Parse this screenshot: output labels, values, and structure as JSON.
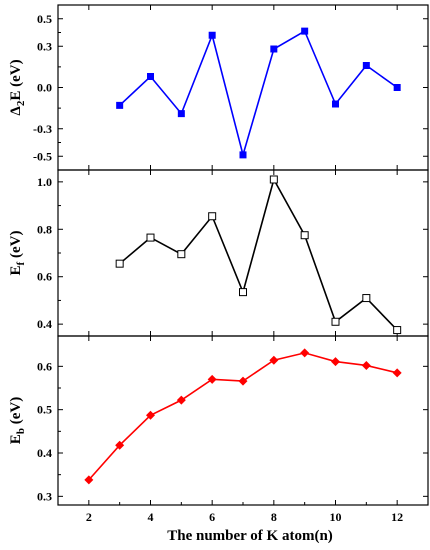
{
  "chart_data": [
    {
      "type": "line",
      "ylabel_main": "Δ",
      "ylabel_sub": "2",
      "ylabel_rest": "E (eV)",
      "ylim": [
        -0.6,
        0.6
      ],
      "yticks": [
        "0.5",
        "0.3",
        "0.0",
        "-0.3",
        "-0.5"
      ],
      "ytick_values": [
        0.5,
        0.3,
        0.0,
        -0.3,
        -0.5
      ],
      "color": "#0000ff",
      "marker": "square-filled",
      "series": [
        {
          "x": [
            3,
            4,
            5,
            6,
            7,
            8,
            9,
            10,
            11,
            12
          ],
          "values": [
            -0.13,
            0.08,
            -0.19,
            0.38,
            -0.49,
            0.28,
            0.41,
            -0.12,
            0.16,
            0.0
          ]
        }
      ]
    },
    {
      "type": "line",
      "ylabel_main": "E",
      "ylabel_sub": "f",
      "ylabel_rest": " (eV)",
      "ylim": [
        0.35,
        1.05
      ],
      "yticks": [
        "1.0",
        "0.8",
        "0.6",
        "0.4"
      ],
      "ytick_values": [
        1.0,
        0.8,
        0.6,
        0.4
      ],
      "color": "#000000",
      "marker": "square-open",
      "series": [
        {
          "x": [
            3,
            4,
            5,
            6,
            7,
            8,
            9,
            10,
            11,
            12
          ],
          "values": [
            0.655,
            0.765,
            0.695,
            0.855,
            0.535,
            1.01,
            0.775,
            0.41,
            0.51,
            0.375
          ]
        }
      ]
    },
    {
      "type": "line",
      "ylabel_main": "E",
      "ylabel_sub": "b",
      "ylabel_rest": " (eV)",
      "ylim": [
        0.28,
        0.67
      ],
      "yticks": [
        "0.6",
        "0.5",
        "0.4",
        "0.3"
      ],
      "ytick_values": [
        0.6,
        0.5,
        0.4,
        0.3
      ],
      "color": "#ff0000",
      "marker": "diamond-filled",
      "series": [
        {
          "x": [
            2,
            3,
            4,
            5,
            6,
            7,
            8,
            9,
            10,
            11,
            12
          ],
          "values": [
            0.338,
            0.418,
            0.487,
            0.522,
            0.57,
            0.566,
            0.614,
            0.631,
            0.611,
            0.602,
            0.585
          ]
        }
      ]
    }
  ],
  "x_axis": {
    "label": "The number of K atom(n)",
    "xlim": [
      1,
      13
    ],
    "ticks": [
      "2",
      "4",
      "6",
      "8",
      "10",
      "12"
    ],
    "tick_values": [
      2,
      4,
      6,
      8,
      10,
      12
    ]
  }
}
